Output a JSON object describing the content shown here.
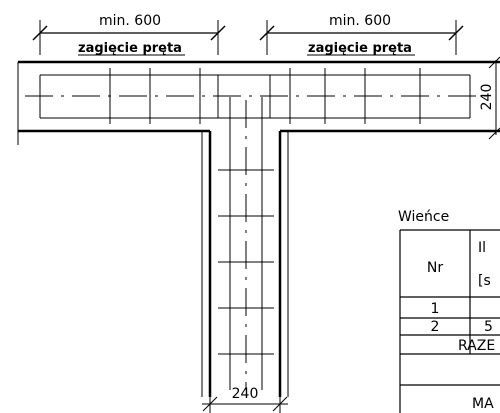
{
  "dimensions": {
    "left_top_value": "min. 600",
    "left_top_caption": "zagięcie pręta",
    "right_top_value": "min. 600",
    "right_top_caption": "zagięcie pręta",
    "right_side_value": "240",
    "bottom_value": "240"
  },
  "table": {
    "title": "Wieńce",
    "header_nr": "Nr",
    "header_qty_line1": "Il",
    "header_qty_line2": "[s",
    "rows": [
      {
        "nr": "1",
        "qty": ""
      },
      {
        "nr": "2",
        "qty": "5"
      }
    ],
    "total_label": "RAZE",
    "mass_label": "MA"
  }
}
